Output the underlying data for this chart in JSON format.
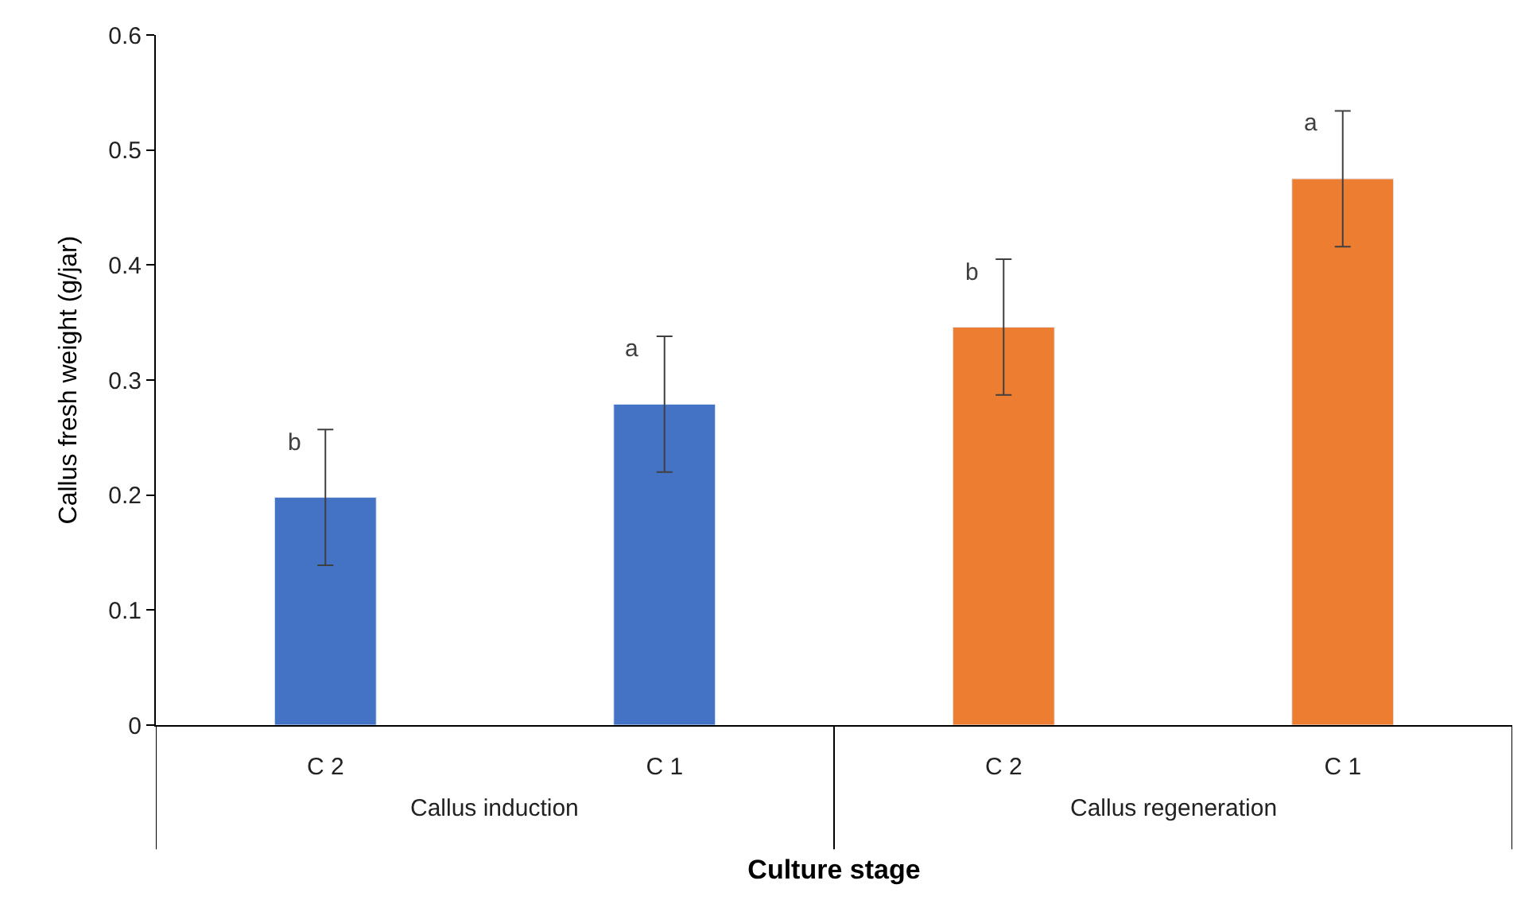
{
  "chart_data": {
    "type": "bar",
    "xlabel": "Culture stage",
    "ylabel": "Callus fresh weight (g/jar)",
    "categories": [
      "C 2",
      "C 1",
      "C 2",
      "C 1"
    ],
    "values": [
      0.198,
      0.279,
      0.346,
      0.475
    ],
    "errors": [
      0.059,
      0.059,
      0.059,
      0.059
    ],
    "colors": [
      "#4472c4",
      "#4472c4",
      "#ed7d31",
      "#ed7d31"
    ],
    "value_labels": [
      "b",
      "a",
      "b",
      "a"
    ],
    "annotations": [
      "Callus induction",
      "Callus regeneration"
    ],
    "ylim": [
      0,
      0.6
    ],
    "yticks": [
      0,
      0.1,
      0.2,
      0.3,
      0.4,
      0.5,
      0.6
    ],
    "legend": false
  }
}
